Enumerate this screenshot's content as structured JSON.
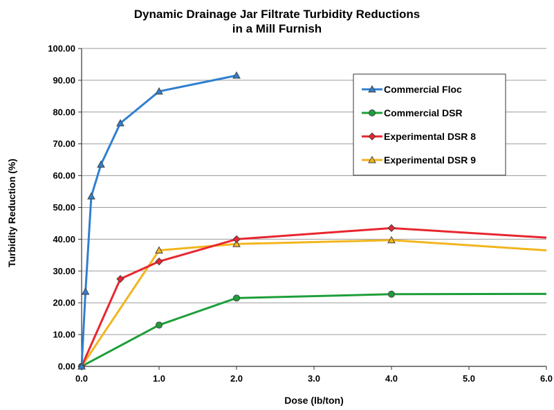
{
  "chart_data": {
    "type": "line",
    "title_lines": [
      "Dynamic Drainage Jar Filtrate Turbidity Reductions",
      "in a Mill Furnish"
    ],
    "xlabel": "Dose (lb/ton)",
    "ylabel": "Turbidity Reduction (%)",
    "xlim": [
      0,
      6
    ],
    "ylim": [
      0,
      100
    ],
    "x_ticks": [
      "0.0",
      "1.0",
      "2.0",
      "3.0",
      "4.0",
      "5.0",
      "6.0"
    ],
    "y_ticks": [
      "0.00",
      "10.00",
      "20.00",
      "30.00",
      "40.00",
      "50.00",
      "60.00",
      "70.00",
      "80.00",
      "90.00",
      "100.00"
    ],
    "grid": "horizontal",
    "legend_position": "top-right",
    "series": [
      {
        "name": "Commercial Floc",
        "color": "#2f7fd0",
        "marker": "triangle",
        "x": [
          0,
          0.05,
          0.125,
          0.25,
          0.5,
          1.0,
          2.0
        ],
        "y": [
          0,
          23.5,
          53.5,
          63.5,
          76.5,
          86.5,
          91.5
        ]
      },
      {
        "name": "Commercial DSR",
        "color": "#1e9e3a",
        "marker": "circle",
        "x": [
          0,
          1.0,
          2.0,
          4.0,
          6.0
        ],
        "y": [
          0,
          13.0,
          21.5,
          22.7,
          22.8
        ]
      },
      {
        "name": "Experimental DSR 8",
        "color": "#e8262f",
        "marker": "diamond",
        "x": [
          0,
          0.5,
          1.0,
          2.0,
          4.0,
          6.0
        ],
        "y": [
          0,
          27.5,
          33.0,
          40.0,
          43.5,
          40.5
        ]
      },
      {
        "name": "Experimental DSR 9",
        "color": "#f2b51d",
        "marker": "triangle",
        "x": [
          0,
          1.0,
          2.0,
          4.0,
          6.0
        ],
        "y": [
          0,
          36.5,
          38.5,
          39.7,
          36.5
        ]
      }
    ]
  }
}
